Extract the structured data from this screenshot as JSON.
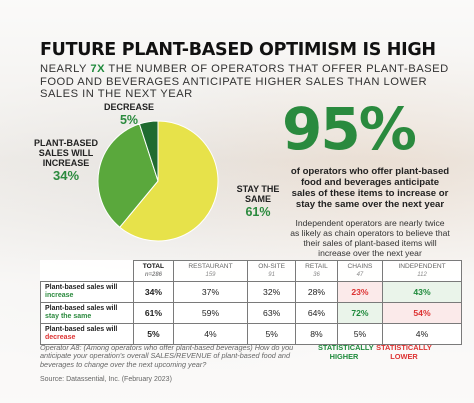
{
  "header": {
    "title": "FUTURE PLANT-BASED OPTIMISM IS HIGH",
    "subtitle_pre": "NEARLY ",
    "subtitle_highlight": "7X",
    "subtitle_post": " THE NUMBER OF OPERATORS THAT OFFER PLANT-BASED FOOD AND BEVERAGES ANTICIPATE HIGHER SALES THAN LOWER SALES IN THE NEXT YEAR"
  },
  "chart_data": [
    {
      "type": "pie",
      "slices": [
        {
          "label": "STAY THE SAME",
          "value": 61,
          "display": "61%",
          "color": "#e7e24a"
        },
        {
          "label": "PLANT-BASED SALES WILL INCREASE",
          "value": 34,
          "display": "34%",
          "color": "#5aa83c"
        },
        {
          "label": "DECREASE",
          "value": 5,
          "display": "5%",
          "color": "#1f6b30"
        }
      ]
    },
    {
      "type": "table",
      "columns": [
        {
          "label": "",
          "n": ""
        },
        {
          "label": "TOTAL",
          "n": "n=286"
        },
        {
          "label": "RESTAURANT",
          "n": "159"
        },
        {
          "label": "ON-SITE",
          "n": "91"
        },
        {
          "label": "RETAIL",
          "n": "36"
        },
        {
          "label": "CHAINS",
          "n": "47"
        },
        {
          "label": "INDEPENDENT",
          "n": "112"
        }
      ],
      "rows": [
        {
          "label_pre": "Plant-based sales will ",
          "label_kw": "increase",
          "kw_color": "green",
          "values": [
            "34%",
            "37%",
            "32%",
            "28%",
            "23%",
            "43%"
          ],
          "flags": [
            "",
            "",
            "",
            "",
            "lo",
            "hi"
          ]
        },
        {
          "label_pre": "Plant-based sales will ",
          "label_kw": "stay the same",
          "kw_color": "green",
          "values": [
            "61%",
            "59%",
            "63%",
            "64%",
            "72%",
            "54%"
          ],
          "flags": [
            "",
            "",
            "",
            "",
            "hi",
            "lo"
          ]
        },
        {
          "label_pre": "Plant-based sales will ",
          "label_kw": "decrease",
          "kw_color": "red",
          "values": [
            "5%",
            "4%",
            "5%",
            "8%",
            "5%",
            "4%"
          ],
          "flags": [
            "",
            "",
            "",
            "",
            "",
            ""
          ]
        }
      ]
    }
  ],
  "callout": {
    "big": "95%",
    "desc": "of operators who offer plant-based food and beverages anticipate sales of these items to increase or stay the same over the next year",
    "sub": "Independent operators are nearly twice as likely as chain operators to believe that their sales of plant-based items will increase over the next year"
  },
  "footer": {
    "note": "Operator A8: (Among operators who offer plant-based beverages) How do you anticipate your operation's overall SALES/REVENUE of plant-based food and beverages to change over the next upcoming year?",
    "source": "Source: Datassential, Inc. (February 2023)",
    "legend_high": "STATISTICALLY HIGHER",
    "legend_low": "STATISTICALLY LOWER"
  },
  "colors": {
    "green": "#2a8a3e",
    "red": "#d33333",
    "yellow": "#e7e24a"
  }
}
